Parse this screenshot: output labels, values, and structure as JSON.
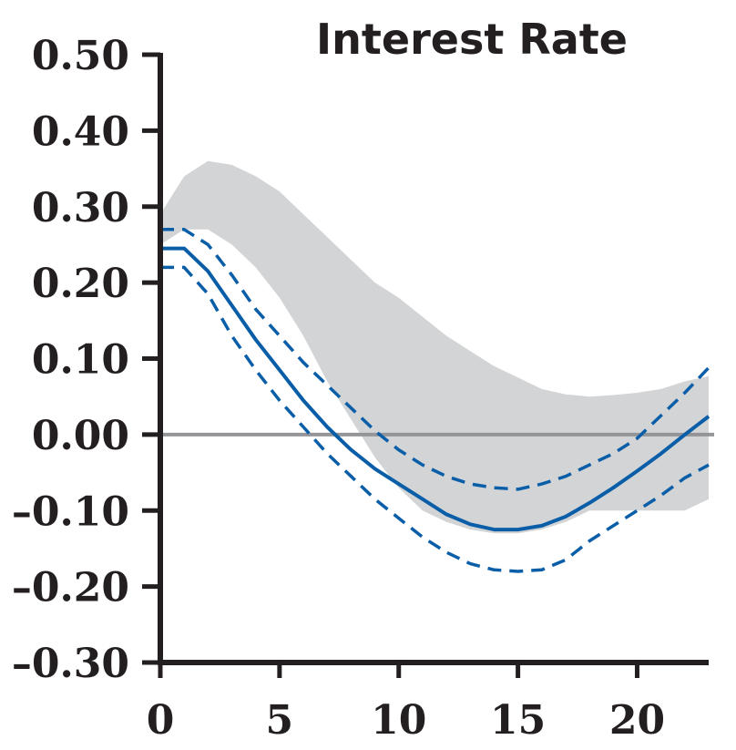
{
  "chart_data": {
    "type": "line",
    "title": "Interest Rate",
    "xlabel": "",
    "ylabel": "",
    "xlim": [
      0,
      23
    ],
    "ylim": [
      -0.3,
      0.5
    ],
    "x_ticks": [
      0,
      5,
      10,
      15,
      20
    ],
    "x_tick_labels": [
      "0",
      "5",
      "10",
      "15",
      "20"
    ],
    "y_ticks": [
      0.5,
      0.4,
      0.3,
      0.2,
      0.1,
      0.0,
      -0.1,
      -0.2,
      -0.3
    ],
    "y_tick_labels": [
      "0.50",
      "0.40",
      "0.30",
      "0.20",
      "0.10",
      "0.00",
      "–0.10",
      "–0.20",
      "–0.30"
    ],
    "zero_line": 0.0,
    "grid": false,
    "legend": "none",
    "x": [
      0,
      1,
      2,
      3,
      4,
      5,
      6,
      7,
      8,
      9,
      10,
      11,
      12,
      13,
      14,
      15,
      16,
      17,
      18,
      19,
      20,
      21,
      22,
      23
    ],
    "band": {
      "upper": [
        0.29,
        0.34,
        0.36,
        0.355,
        0.34,
        0.32,
        0.29,
        0.26,
        0.23,
        0.2,
        0.18,
        0.155,
        0.13,
        0.11,
        0.09,
        0.075,
        0.06,
        0.053,
        0.05,
        0.052,
        0.055,
        0.06,
        0.07,
        0.077
      ],
      "lower": [
        0.25,
        0.27,
        0.27,
        0.25,
        0.22,
        0.18,
        0.13,
        0.07,
        0.02,
        -0.03,
        -0.07,
        -0.1,
        -0.115,
        -0.125,
        -0.13,
        -0.13,
        -0.125,
        -0.115,
        -0.1,
        -0.1,
        -0.1,
        -0.1,
        -0.1,
        -0.085
      ]
    },
    "series": [
      {
        "values": [
          0.245,
          0.245,
          0.215,
          0.17,
          0.125,
          0.085,
          0.045,
          0.01,
          -0.02,
          -0.045,
          -0.065,
          -0.085,
          -0.105,
          -0.118,
          -0.125,
          -0.125,
          -0.12,
          -0.108,
          -0.09,
          -0.07,
          -0.048,
          -0.025,
          0.0,
          0.024
        ]
      },
      {
        "values": [
          0.27,
          0.27,
          0.25,
          0.21,
          0.165,
          0.13,
          0.095,
          0.065,
          0.035,
          0.005,
          -0.02,
          -0.04,
          -0.055,
          -0.065,
          -0.07,
          -0.072,
          -0.065,
          -0.055,
          -0.04,
          -0.025,
          -0.005,
          0.025,
          0.055,
          0.088
        ]
      },
      {
        "values": [
          0.22,
          0.22,
          0.185,
          0.13,
          0.085,
          0.045,
          0.01,
          -0.025,
          -0.055,
          -0.085,
          -0.11,
          -0.135,
          -0.155,
          -0.17,
          -0.178,
          -0.18,
          -0.178,
          -0.165,
          -0.14,
          -0.12,
          -0.1,
          -0.08,
          -0.057,
          -0.04
        ]
      }
    ],
    "colors": {
      "line": "#0a5ea8",
      "band": "#d3d4d6",
      "zero_line": "#939598",
      "axis": "#231f20"
    }
  }
}
